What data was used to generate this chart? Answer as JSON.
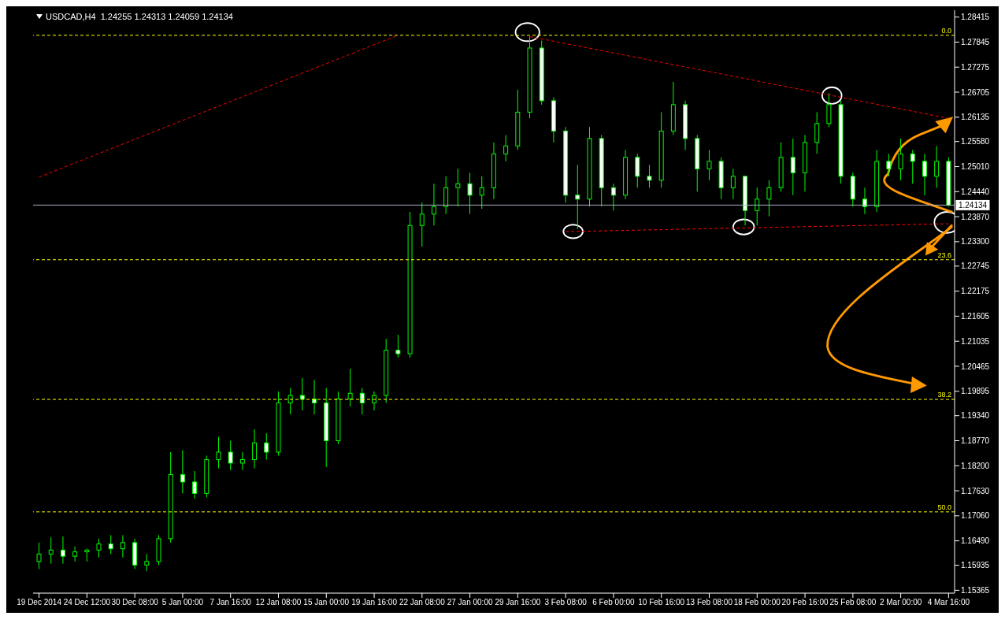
{
  "chart_data": {
    "type": "candlestick",
    "title": "USDCAD,H4  1.24255 1.24313 1.24059 1.24134",
    "color": "#00ff00",
    "categories": [
      "19 Dec 2014",
      null,
      null,
      null,
      "24 Dec 12:00",
      null,
      null,
      null,
      "30 Dec 08:00",
      null,
      null,
      null,
      "5 Jan 00:00",
      null,
      null,
      null,
      "7 Jan 16:00",
      null,
      null,
      null,
      "12 Jan 08:00",
      null,
      null,
      null,
      "15 Jan 00:00",
      null,
      null,
      null,
      "19 Jan 16:00",
      null,
      null,
      null,
      "22 Jan 08:00",
      null,
      null,
      null,
      "27 Jan 00:00",
      null,
      null,
      null,
      "29 Jan 16:00",
      null,
      null,
      null,
      "3 Feb 08:00",
      null,
      null,
      null,
      "6 Feb 00:00",
      null,
      null,
      null,
      "10 Feb 16:00",
      null,
      null,
      null,
      "13 Feb 08:00",
      null,
      null,
      null,
      "18 Feb 00:00",
      null,
      null,
      null,
      "20 Feb 16:00",
      null,
      null,
      null,
      "25 Feb 08:00",
      null,
      null,
      null,
      "2 Mar 00:00",
      null,
      null,
      null,
      "4 Mar 16:00"
    ],
    "ohlc": [
      [
        1.1602,
        1.1645,
        1.1585,
        1.1619
      ],
      [
        1.1619,
        1.1657,
        1.1597,
        1.1628
      ],
      [
        1.1628,
        1.1659,
        1.1597,
        1.1614
      ],
      [
        1.1614,
        1.1636,
        1.1602,
        1.1624
      ],
      [
        1.1624,
        1.1631,
        1.1602,
        1.1628
      ],
      [
        1.1628,
        1.1654,
        1.1611,
        1.1642
      ],
      [
        1.1642,
        1.1662,
        1.1619,
        1.1631
      ],
      [
        1.1631,
        1.1662,
        1.1611,
        1.1645
      ],
      [
        1.1645,
        1.1654,
        1.1585,
        1.1594
      ],
      [
        1.1594,
        1.1619,
        1.158,
        1.1602
      ],
      [
        1.1602,
        1.1662,
        1.1594,
        1.1654
      ],
      [
        1.1654,
        1.1851,
        1.1645,
        1.18
      ],
      [
        1.18,
        1.1855,
        1.1757,
        1.1783
      ],
      [
        1.1783,
        1.1808,
        1.1745,
        1.1757
      ],
      [
        1.1757,
        1.1843,
        1.1748,
        1.1834
      ],
      [
        1.1834,
        1.1886,
        1.1814,
        1.1851
      ],
      [
        1.1851,
        1.1877,
        1.181,
        1.1826
      ],
      [
        1.1826,
        1.1851,
        1.181,
        1.1834
      ],
      [
        1.1834,
        1.1903,
        1.1814,
        1.1872
      ],
      [
        1.1872,
        1.1894,
        1.1834,
        1.1851
      ],
      [
        1.1851,
        1.1989,
        1.1843,
        1.1963
      ],
      [
        1.1963,
        1.1997,
        1.1937,
        1.198
      ],
      [
        1.198,
        1.202,
        1.1946,
        1.1972
      ],
      [
        1.1972,
        1.2015,
        1.1937,
        1.1963
      ],
      [
        1.1963,
        1.1997,
        1.1817,
        1.1877
      ],
      [
        1.1877,
        1.1989,
        1.1869,
        1.1972
      ],
      [
        1.1972,
        1.2041,
        1.1955,
        1.1985
      ],
      [
        1.1985,
        1.1997,
        1.1937,
        1.1963
      ],
      [
        1.1963,
        1.1989,
        1.1946,
        1.198
      ],
      [
        1.198,
        1.2109,
        1.1963,
        1.2083
      ],
      [
        1.2083,
        1.2118,
        1.2066,
        1.2075
      ],
      [
        1.2075,
        1.2398,
        1.2066,
        1.2367
      ],
      [
        1.2367,
        1.2419,
        1.2319,
        1.2393
      ],
      [
        1.2393,
        1.2462,
        1.2367,
        1.241
      ],
      [
        1.241,
        1.2479,
        1.2393,
        1.2453
      ],
      [
        1.2453,
        1.2496,
        1.241,
        1.2462
      ],
      [
        1.2462,
        1.2487,
        1.2393,
        1.2436
      ],
      [
        1.2436,
        1.2479,
        1.2405,
        1.2453
      ],
      [
        1.2453,
        1.2556,
        1.2427,
        1.253
      ],
      [
        1.253,
        1.2573,
        1.2513,
        1.2548
      ],
      [
        1.2548,
        1.2676,
        1.2539,
        1.2625
      ],
      [
        1.2625,
        1.2797,
        1.2611,
        1.2771
      ],
      [
        1.2771,
        1.2788,
        1.2642,
        1.2651
      ],
      [
        1.2651,
        1.2659,
        1.2556,
        1.2582
      ],
      [
        1.2582,
        1.2591,
        1.2419,
        1.2436
      ],
      [
        1.2436,
        1.2505,
        1.2359,
        1.2427
      ],
      [
        1.2427,
        1.2591,
        1.241,
        1.2565
      ],
      [
        1.2565,
        1.2573,
        1.241,
        1.2453
      ],
      [
        1.2453,
        1.2462,
        1.2401,
        1.2436
      ],
      [
        1.2436,
        1.2539,
        1.2427,
        1.2522
      ],
      [
        1.2522,
        1.253,
        1.2453,
        1.2479
      ],
      [
        1.2479,
        1.2505,
        1.2453,
        1.247
      ],
      [
        1.247,
        1.2625,
        1.2453,
        1.2582
      ],
      [
        1.2582,
        1.2694,
        1.2573,
        1.2642
      ],
      [
        1.2642,
        1.2651,
        1.2539,
        1.2565
      ],
      [
        1.2565,
        1.2573,
        1.2444,
        1.2496
      ],
      [
        1.2496,
        1.2539,
        1.247,
        1.2513
      ],
      [
        1.2513,
        1.2522,
        1.2427,
        1.2453
      ],
      [
        1.2453,
        1.2496,
        1.2427,
        1.2479
      ],
      [
        1.2479,
        1.2479,
        1.2367,
        1.2401
      ],
      [
        1.2401,
        1.2453,
        1.2367,
        1.2427
      ],
      [
        1.2427,
        1.247,
        1.2388,
        1.2453
      ],
      [
        1.2453,
        1.2556,
        1.2444,
        1.2522
      ],
      [
        1.2522,
        1.2565,
        1.2436,
        1.2487
      ],
      [
        1.2487,
        1.2573,
        1.2444,
        1.2556
      ],
      [
        1.2556,
        1.2625,
        1.253,
        1.2599
      ],
      [
        1.2599,
        1.2668,
        1.2591,
        1.2642
      ],
      [
        1.2642,
        1.2651,
        1.2462,
        1.2479
      ],
      [
        1.2479,
        1.2487,
        1.241,
        1.2427
      ],
      [
        1.2427,
        1.2453,
        1.2393,
        1.241
      ],
      [
        1.241,
        1.2539,
        1.2398,
        1.2513
      ],
      [
        1.2513,
        1.253,
        1.2479,
        1.2496
      ],
      [
        1.2496,
        1.2565,
        1.247,
        1.253
      ],
      [
        1.253,
        1.2539,
        1.2462,
        1.2513
      ],
      [
        1.2513,
        1.253,
        1.2436,
        1.2479
      ],
      [
        1.2479,
        1.2548,
        1.2453,
        1.2513
      ],
      [
        1.2513,
        1.2522,
        1.241,
        1.2413
      ]
    ],
    "series": [
      {
        "type": "line",
        "color": "#ff0000",
        "line_style": "dashed",
        "values": [
          1.2477,
          null,
          null,
          null,
          null,
          null,
          null,
          null,
          null,
          null,
          null,
          null,
          null,
          null,
          null,
          null,
          null,
          null,
          null,
          null,
          null,
          null,
          null,
          null,
          null,
          null,
          null,
          null,
          null,
          null,
          1.28,
          null,
          null,
          null,
          null,
          null,
          null,
          null,
          null,
          null,
          null,
          null,
          null,
          null,
          null,
          null,
          null,
          null,
          null,
          null,
          null,
          null,
          null,
          null,
          null,
          null,
          null,
          null,
          null,
          null,
          null,
          null,
          null,
          null,
          null,
          null,
          null,
          null,
          null,
          null,
          null,
          null,
          null,
          null,
          null,
          null,
          null
        ]
      },
      {
        "type": "line",
        "color": "#ff0000",
        "line_style": "dashed",
        "values": [
          null,
          null,
          null,
          null,
          null,
          null,
          null,
          null,
          null,
          null,
          null,
          null,
          null,
          null,
          null,
          null,
          null,
          null,
          null,
          null,
          null,
          null,
          null,
          null,
          null,
          null,
          null,
          null,
          null,
          null,
          null,
          null,
          null,
          null,
          null,
          null,
          null,
          null,
          null,
          null,
          null,
          1.2797,
          null,
          null,
          null,
          null,
          null,
          null,
          null,
          null,
          null,
          null,
          null,
          null,
          null,
          null,
          null,
          null,
          null,
          null,
          null,
          null,
          null,
          null,
          null,
          null,
          null,
          null,
          null,
          null,
          null,
          null,
          null,
          null,
          null,
          null,
          1.2611
        ]
      },
      {
        "type": "line",
        "color": "#ff0000",
        "line_style": "dashed",
        "values": [
          null,
          null,
          null,
          null,
          null,
          null,
          null,
          null,
          null,
          null,
          null,
          null,
          null,
          null,
          null,
          null,
          null,
          null,
          null,
          null,
          null,
          null,
          null,
          null,
          null,
          null,
          null,
          null,
          null,
          null,
          null,
          null,
          null,
          null,
          null,
          null,
          null,
          null,
          null,
          null,
          null,
          null,
          null,
          null,
          1.2353,
          null,
          null,
          null,
          null,
          null,
          null,
          null,
          null,
          null,
          null,
          null,
          null,
          null,
          null,
          null,
          null,
          null,
          null,
          null,
          null,
          null,
          null,
          null,
          null,
          null,
          null,
          null,
          null,
          null,
          null,
          null,
          1.2371
        ]
      }
    ],
    "ylim": [
      1.153,
      1.2857
    ],
    "yticks": [
      1.28415,
      1.27845,
      1.27275,
      1.26705,
      1.26135,
      {
        "value": 1.2558,
        "label": "1.25580"
      },
      {
        "value": 1.2501,
        "label": "1.25010"
      },
      {
        "value": 1.2444,
        "label": "1.24440"
      },
      {
        "value": 1.2387,
        "label": "1.23870"
      },
      {
        "value": 1.233,
        "label": "1.23300"
      },
      1.22745,
      1.22175,
      1.21605,
      1.21035,
      1.20465,
      1.19895,
      {
        "value": 1.1934,
        "label": "1.19340"
      },
      {
        "value": 1.1877,
        "label": "1.18770"
      },
      {
        "value": 1.182,
        "label": "1.18200"
      },
      {
        "value": 1.1763,
        "label": "1.17630"
      },
      {
        "value": 1.1706,
        "label": "1.17060"
      },
      {
        "value": 1.1649,
        "label": "1.16490"
      },
      1.15935,
      1.15365
    ],
    "ref_lines": [
      {
        "axis": "y",
        "value": 1.28,
        "color": "#ffff00",
        "line_style": "dashed"
      },
      {
        "axis": "y",
        "value": 1.2289,
        "color": "#ffff00",
        "line_style": "dashed"
      },
      {
        "axis": "y",
        "value": 1.1971,
        "color": "#ffff00",
        "line_style": "dashed"
      },
      {
        "axis": "y",
        "value": 1.1715,
        "color": "#ffff00",
        "line_style": "dashed"
      },
      {
        "axis": "y",
        "value": 1.24134,
        "label": "1.24134",
        "color": "#a8b0c0",
        "line_style": "solid"
      }
    ],
    "annotations": [
      {
        "text": "0.0",
        "y": 1.28
      },
      {
        "text": "23.6",
        "y": 1.2289
      },
      {
        "text": "38.2",
        "y": 1.1971
      },
      {
        "text": "50.0",
        "y": 1.1715
      }
    ]
  }
}
